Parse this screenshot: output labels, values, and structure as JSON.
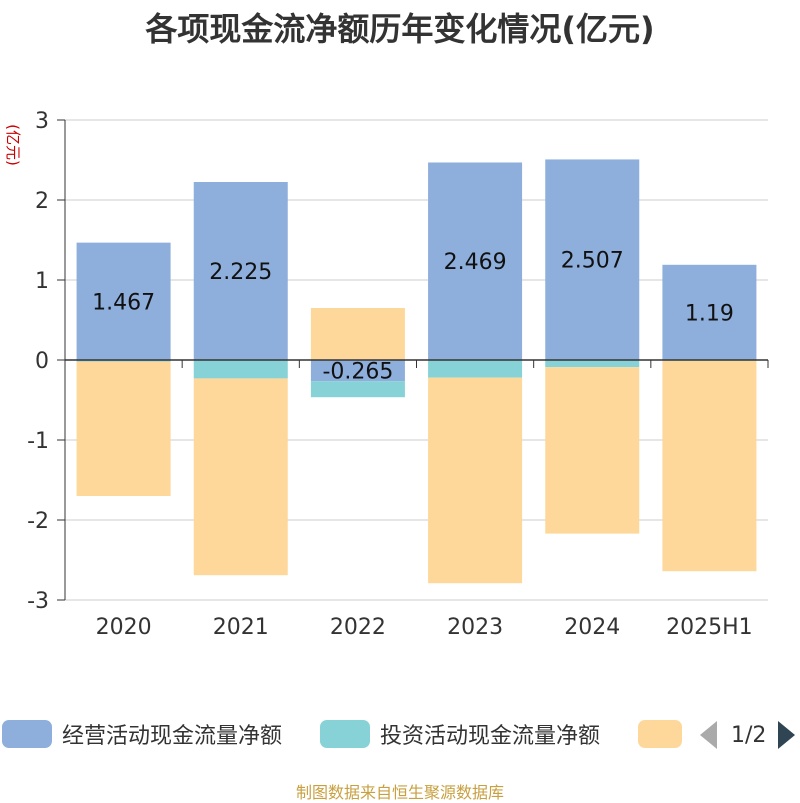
{
  "title": "各项现金流净额历年变化情况(亿元)",
  "source_note": "制图数据来自恒生聚源数据库",
  "legend": {
    "page_indicator": "1/2"
  },
  "colors": {
    "operating": "#8eaedb",
    "investing": "#86d2d6",
    "financing": "#fdd89a",
    "axis": "#333333",
    "grid": "#cccccc",
    "unit_label": "#cc0000"
  },
  "chart_data": {
    "type": "bar",
    "stacked": true,
    "ylabel": "(亿元)",
    "ylim": [
      -3,
      3
    ],
    "yticks": [
      "3",
      "2",
      "1",
      "0",
      "-1",
      "-2",
      "-3"
    ],
    "grid": true,
    "legend_position": "bottom",
    "categories": [
      "2020",
      "2021",
      "2022",
      "2023",
      "2024",
      "2025H1"
    ],
    "series": [
      {
        "name": "经营活动现金流量净额",
        "values": [
          1.467,
          2.225,
          -0.265,
          2.469,
          2.507,
          1.19
        ],
        "labels": [
          "1.467",
          "2.225",
          "-0.265",
          "2.469",
          "2.507",
          "1.19"
        ]
      },
      {
        "name": "投资活动现金流量净额",
        "values": [
          -0.02,
          -0.23,
          -0.2,
          -0.22,
          -0.09,
          -0.01
        ]
      },
      {
        "name": "",
        "values": [
          -1.68,
          -2.46,
          0.65,
          -2.57,
          -2.08,
          -2.63
        ]
      }
    ]
  }
}
